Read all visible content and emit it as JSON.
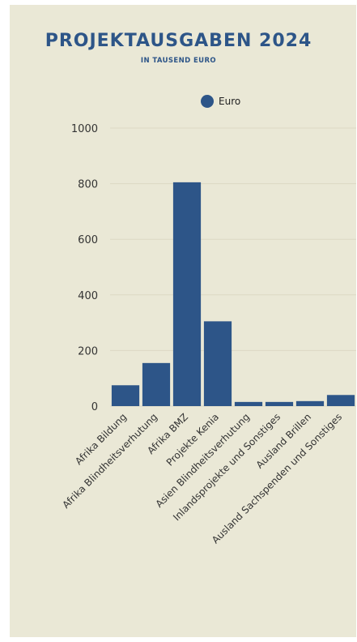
{
  "chart_data": {
    "type": "bar",
    "title": "PROJEKTAUSGABEN 2024",
    "subtitle": "IN TAUSEND EURO",
    "categories": [
      "Afrika Bildung",
      "Afrika Blindheitsverhutung",
      "Afrika BMZ",
      "Projekte Kenia",
      "Asien Blindheitsverhutung",
      "Inlandsprojekte und Sonstiges",
      "Ausland Brillen",
      "Ausland Sachspenden und Sonstiges"
    ],
    "series": [
      {
        "name": "Euro",
        "values": [
          75,
          155,
          805,
          305,
          15,
          15,
          18,
          40
        ]
      }
    ],
    "ylim": [
      0,
      1000
    ],
    "yticks": [
      0,
      200,
      400,
      600,
      800,
      1000
    ],
    "legend": "top",
    "grid": true,
    "colors": {
      "bar": "#2d5588",
      "background": "#eae8d6",
      "title": "#2d5588"
    }
  }
}
